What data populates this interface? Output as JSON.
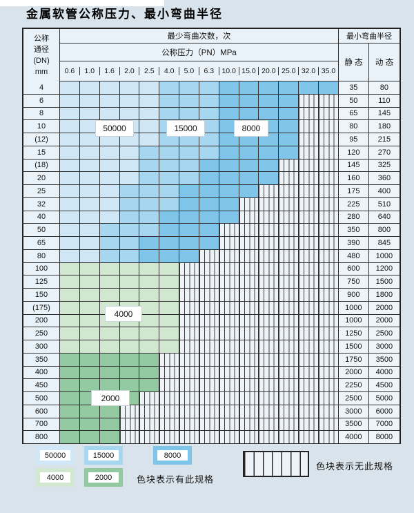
{
  "title": "金属软管公称压力、最小弯曲半径",
  "colors": {
    "blue_50000": "#cfe7f6",
    "blue_15000": "#a6d6f0",
    "blue_8000": "#7fc5e9",
    "green_4000": "#d2e7cf",
    "green_2000": "#92c9a0",
    "page_bg": "#d8e3eb",
    "grid_line": "#2f2f2f",
    "stripe_bg": "#edf3f9"
  },
  "table": {
    "header": {
      "dn_lines": [
        "公称",
        "通径",
        "(DN)",
        "mm"
      ],
      "bend_cycles": "最少弯曲次数，次",
      "pressure": "公称压力（PN）MPa",
      "radius": "最小弯曲半径",
      "static": "静 态",
      "dynamic": "动 态"
    },
    "overlay_labels": [
      {
        "text": "50000"
      },
      {
        "text": "15000"
      },
      {
        "text": "8000"
      },
      {
        "text": "4000"
      },
      {
        "text": "2000"
      }
    ]
  },
  "legend": {
    "chips": [
      {
        "label": "50000",
        "color_key": "blue_50000"
      },
      {
        "label": "15000",
        "color_key": "blue_15000"
      },
      {
        "label": "8000",
        "color_key": "blue_8000"
      },
      {
        "label": "4000",
        "color_key": "green_4000"
      },
      {
        "label": "2000",
        "color_key": "green_2000"
      }
    ],
    "note_available": "色块表示有此规格",
    "note_unavailable": "色块表示无此规格"
  },
  "chart_data": {
    "type": "heatmap",
    "title": "金属软管公称压力、最小弯曲半径",
    "x_label": "公称压力（PN）MPa",
    "x_ticks": [
      "0.6",
      "1.0",
      "1.6",
      "2.0",
      "2.5",
      "4.0",
      "5.0",
      "6.3",
      "10.0",
      "15.0",
      "20.0",
      "25.0",
      "32.0",
      "35.0"
    ],
    "y_label": "公称通径(DN) mm",
    "y_ticks": [
      "4",
      "6",
      "8",
      "10",
      "(12)",
      "15",
      "(18)",
      "20",
      "25",
      "32",
      "40",
      "50",
      "65",
      "80",
      "100",
      "125",
      "150",
      "(175)",
      "200",
      "250",
      "300",
      "350",
      "400",
      "450",
      "500",
      "600",
      "700",
      "800"
    ],
    "classes": {
      "1": "50000次",
      "2": "15000次",
      "3": "8000次",
      "4": "4000次",
      "5": "2000次",
      "0": "无此规格"
    },
    "matrix": [
      "11111222333333",
      "11111222333300",
      "11111222333300",
      "11111222333300",
      "11111222333300",
      "11112222333300",
      "11112223333000",
      "11112223333000",
      "11122233330000",
      "11122233300000",
      "11122333300000",
      "11222333000000",
      "11223333000000",
      "11223330000000",
      "44444400000000",
      "44444400000000",
      "44444400000000",
      "44444400000000",
      "44444400000000",
      "44444400000000",
      "44444400000000",
      "55555000000000",
      "55555000000000",
      "55555000000000",
      "55550000000000",
      "55500000000000",
      "55500000000000",
      "55500000000000"
    ],
    "min_bend_radius": {
      "static": [
        35,
        50,
        65,
        80,
        95,
        120,
        145,
        160,
        175,
        225,
        280,
        350,
        390,
        480,
        600,
        750,
        900,
        1000,
        1000,
        1250,
        1500,
        1750,
        2000,
        2250,
        2500,
        3000,
        3500,
        4000
      ],
      "dynamic": [
        80,
        110,
        145,
        180,
        215,
        270,
        325,
        360,
        400,
        510,
        640,
        800,
        845,
        1000,
        1200,
        1500,
        1800,
        2000,
        2000,
        2500,
        3000,
        3500,
        4000,
        4500,
        5000,
        6000,
        7000,
        8000
      ]
    }
  }
}
